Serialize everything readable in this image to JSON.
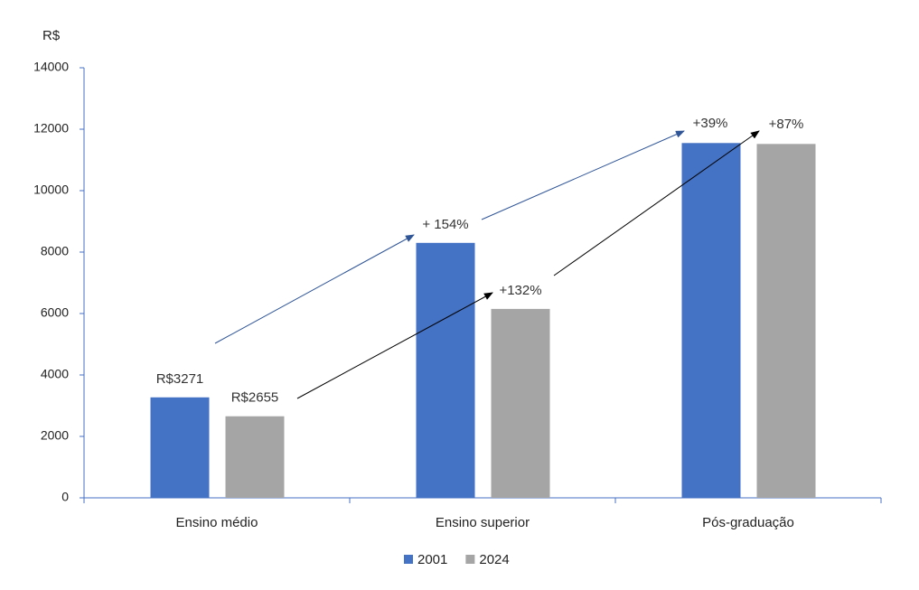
{
  "chart_data": {
    "type": "bar",
    "y_label": "R$",
    "categories": [
      "Ensino médio",
      "Ensino superior",
      "Pós-graduação"
    ],
    "series": [
      {
        "name": "2001",
        "color": "#4472c4",
        "values": [
          3271,
          8300,
          11550
        ],
        "value_labels": [
          "R$3271",
          null,
          null
        ]
      },
      {
        "name": "2024",
        "color": "#a5a5a5",
        "values": [
          2655,
          6150,
          11520
        ],
        "value_labels": [
          "R$2655",
          null,
          null
        ]
      }
    ],
    "annotations": [
      "+ 154%",
      "+39%",
      "+132%",
      "+87%"
    ],
    "ylim": [
      0,
      14000
    ],
    "yticks": [
      0,
      2000,
      4000,
      6000,
      8000,
      10000,
      12000,
      14000
    ],
    "legend": "bottom",
    "grid": false
  }
}
